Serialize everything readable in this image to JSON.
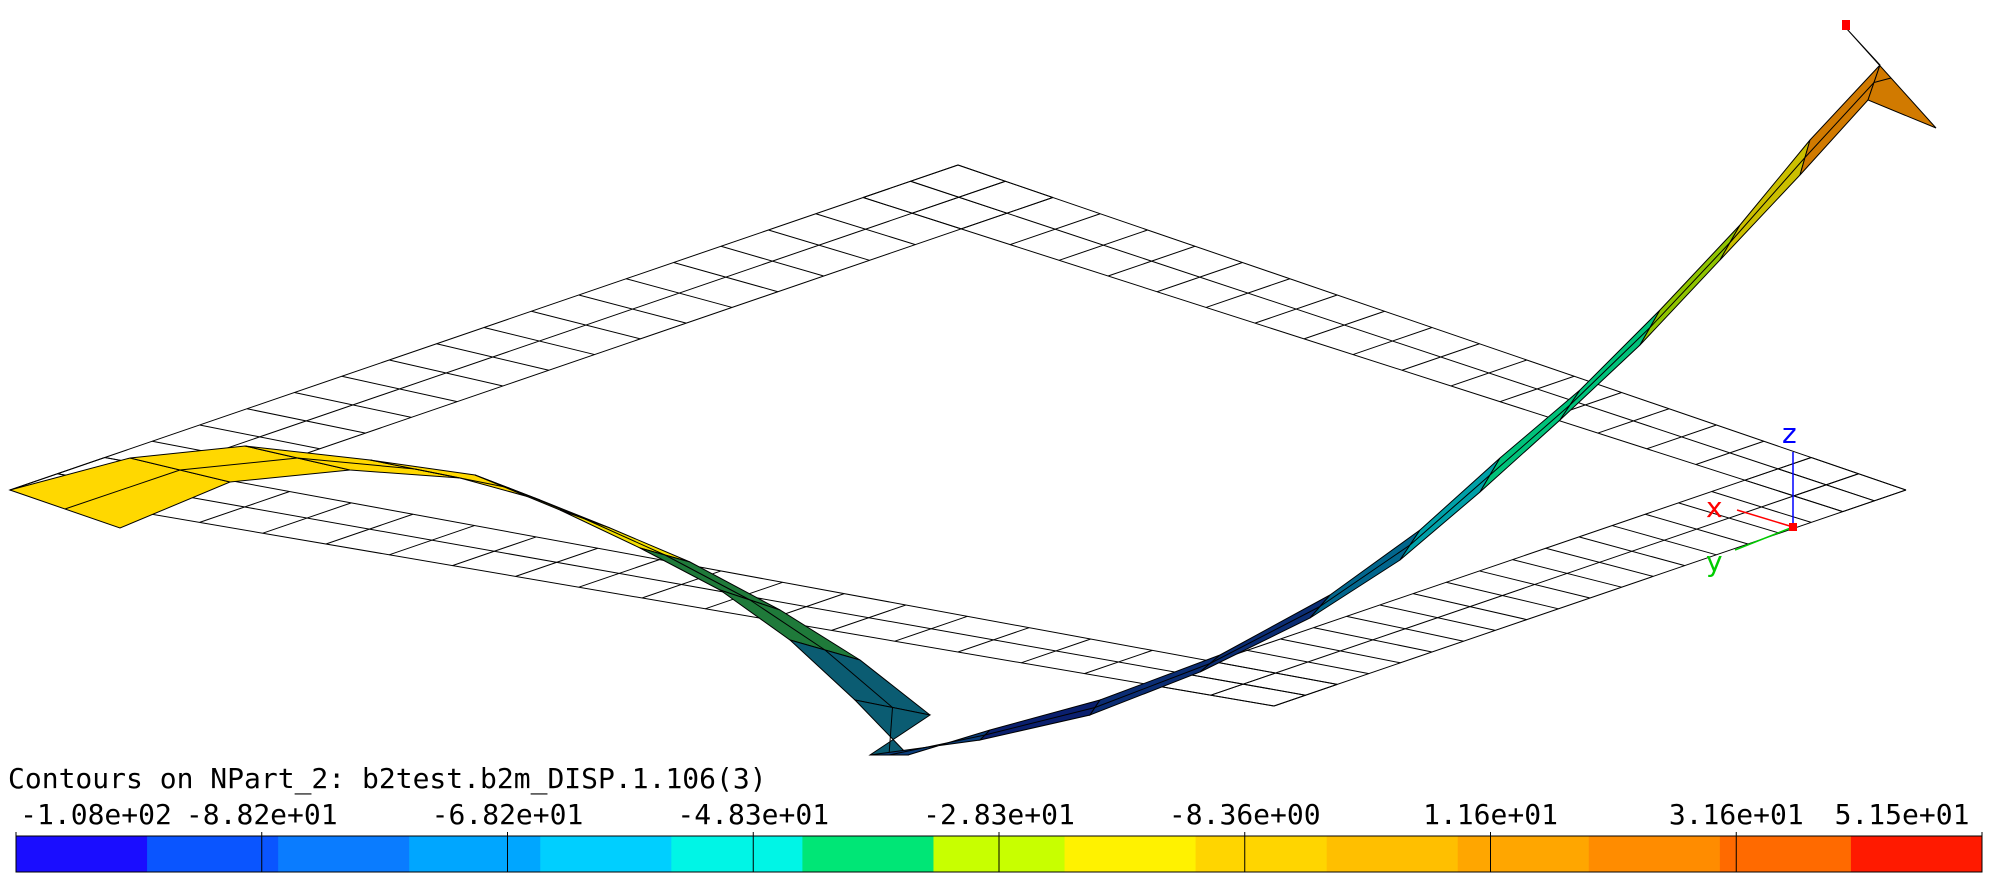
{
  "legend": {
    "title": "Contours on NPart_2: b2test.b2m_DISP.1.106(3)",
    "tick_labels": [
      "-1.08e+02",
      "-8.82e+01",
      "-6.82e+01",
      "-4.83e+01",
      "-2.83e+01",
      "-8.36e+00",
      "1.16e+01",
      "3.16e+01",
      "5.15e+01"
    ],
    "colors": [
      "#1a0dff",
      "#0a55ff",
      "#0a7cff",
      "#00a6ff",
      "#00cfff",
      "#00f5e6",
      "#00e676",
      "#c8ff00",
      "#fff200",
      "#ffd500",
      "#ffbf00",
      "#ffa600",
      "#ff8c00",
      "#ff6a00",
      "#ff1a00"
    ]
  },
  "axes": {
    "x_label": "x",
    "y_label": "y",
    "z_label": "z",
    "x_color": "#ff0000",
    "y_color": "#00cc00",
    "z_color": "#0000ff"
  }
}
